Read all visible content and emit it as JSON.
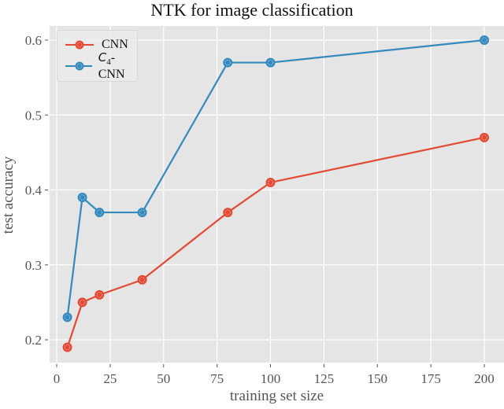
{
  "chart_data": {
    "type": "line",
    "title": "NTK for image classification",
    "xlabel": "training set size",
    "ylabel": "test accuracy",
    "x": [
      5,
      12,
      20,
      40,
      80,
      100,
      200
    ],
    "series": [
      {
        "name": "CNN",
        "color": "#e24a33",
        "values": [
          0.19,
          0.25,
          0.26,
          0.28,
          0.37,
          0.41,
          0.47
        ]
      },
      {
        "name": "C4-CNN",
        "color": "#348abd",
        "values": [
          0.23,
          0.39,
          0.37,
          0.37,
          0.57,
          0.57,
          0.6
        ]
      }
    ],
    "xticks": [
      0,
      25,
      50,
      75,
      100,
      125,
      150,
      175,
      200
    ],
    "yticks": [
      0.2,
      0.3,
      0.4,
      0.5,
      0.6
    ],
    "xlim": [
      -3,
      206
    ],
    "ylim": [
      0.17,
      0.62
    ],
    "grid": true,
    "legend_position": "upper left",
    "background": "#e5e5e5"
  },
  "legend": {
    "items": [
      {
        "label": "CNN",
        "color": "#e24a33"
      },
      {
        "label_main": "C",
        "label_sub": "4",
        "label_rest": "-CNN",
        "color": "#348abd"
      }
    ]
  }
}
